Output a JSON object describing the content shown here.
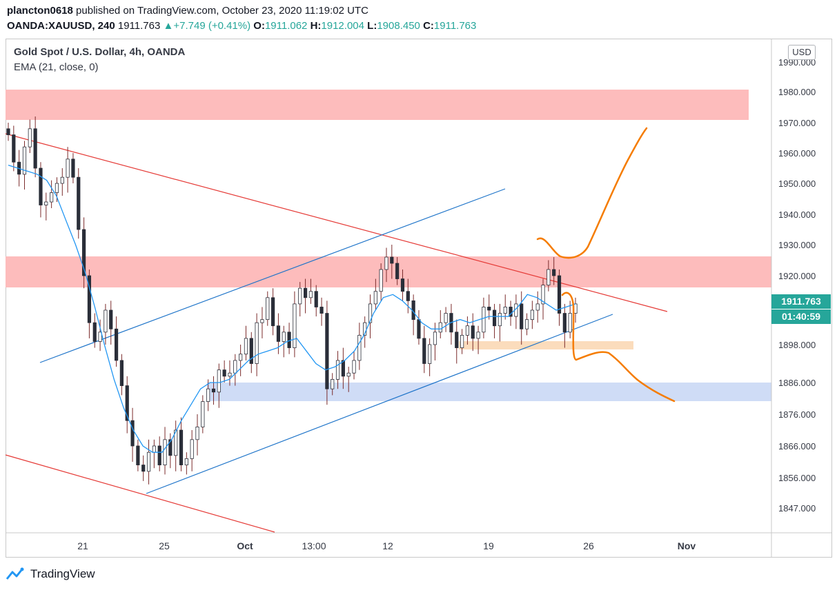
{
  "header": {
    "author": "plancton0618",
    "published_text": "published on TradingView.com, October 23, 2020 11:19:02 UTC",
    "symbol": "OANDA:XAUUSD, 240",
    "last": "1911.763",
    "change": "+7.749 (+0.41%)",
    "o_label": "O:",
    "o_value": "1911.062",
    "h_label": "H:",
    "h_value": "1912.004",
    "l_label": "L:",
    "l_value": "1908.450",
    "c_label": "C:",
    "c_value": "1911.763"
  },
  "legend": {
    "title": "Gold Spot / U.S. Dollar, 4h, OANDA",
    "indicator": "EMA (21, close, 0)"
  },
  "currency_button": "USD",
  "brand": "TradingView",
  "colors": {
    "up": "#26a69a",
    "down": "#ef5350",
    "candle_body": "#2a2e39",
    "wick": "#7a2a2a",
    "ema": "#2196f3",
    "resistance_zone": "#fdbcbc",
    "support_zone": "#cfdcf6",
    "minor_zone": "#fbdcbc",
    "projection": "#f57c00",
    "red_line": "#e53935",
    "blue_line": "#1e74c9",
    "price_tag": "#26a69a"
  },
  "chart_data": {
    "type": "candlestick",
    "y_axis_labels": [
      "1990.000",
      "1980.000",
      "1970.000",
      "1960.000",
      "1950.000",
      "1940.000",
      "1930.000",
      "1920.000",
      "1898.000",
      "1886.000",
      "1876.000",
      "1866.000",
      "1856.000",
      "1847.000"
    ],
    "x_axis_labels": [
      "21",
      "25",
      "Oct",
      "13:00",
      "12",
      "19",
      "26",
      "Nov"
    ],
    "last_price_tag": "1911.763",
    "countdown_tag": "01:40:59",
    "ohlc_close": [
      1966,
      1957,
      1953,
      1962,
      1968,
      1955,
      1943,
      1944,
      1947,
      1950,
      1952,
      1958,
      1952,
      1935,
      1920,
      1905,
      1899,
      1902,
      1909,
      1903,
      1893,
      1885,
      1874,
      1866,
      1860,
      1858,
      1864,
      1866,
      1860,
      1868,
      1863,
      1871,
      1860,
      1862,
      1868,
      1872,
      1880,
      1884,
      1883,
      1890,
      1888,
      1889,
      1893,
      1895,
      1900,
      1892,
      1905,
      1906,
      1913,
      1904,
      1899,
      1902,
      1897,
      1911,
      1916,
      1913,
      1915,
      1910,
      1908,
      1884,
      1887,
      1893,
      1888,
      1889,
      1893,
      1901,
      1905,
      1911,
      1915,
      1922,
      1926,
      1924,
      1919,
      1915,
      1912,
      1906,
      1900,
      1892,
      1898,
      1902,
      1905,
      1908,
      1902,
      1897,
      1901,
      1904,
      1900,
      1902,
      1910,
      1909,
      1904,
      1908,
      1910,
      1907,
      1911,
      1903,
      1906,
      1909,
      1911,
      1917,
      1922,
      1920,
      1908,
      1902,
      1908,
      1911
    ],
    "ema": [
      1956,
      1955,
      1954,
      1953,
      1951,
      1946,
      1938,
      1930,
      1921,
      1910,
      1898,
      1887,
      1878,
      1871,
      1866,
      1864,
      1864,
      1868,
      1874,
      1879,
      1884,
      1886,
      1886,
      1887,
      1890,
      1893,
      1895,
      1896,
      1897,
      1899,
      1900,
      1896,
      1892,
      1890,
      1891,
      1893,
      1896,
      1901,
      1908,
      1913,
      1914,
      1912,
      1909,
      1905,
      1903,
      1903,
      1905,
      1906,
      1905,
      1906,
      1907,
      1907,
      1907,
      1910,
      1914,
      1913,
      1911,
      1909,
      1910,
      1911
    ],
    "zones": [
      {
        "top": 1980,
        "bottom": 1970
      },
      {
        "top": 1925,
        "bottom": 1915
      },
      {
        "top": 1900,
        "bottom": 1897
      },
      {
        "top": 1885,
        "bottom": 1879
      }
    ]
  }
}
